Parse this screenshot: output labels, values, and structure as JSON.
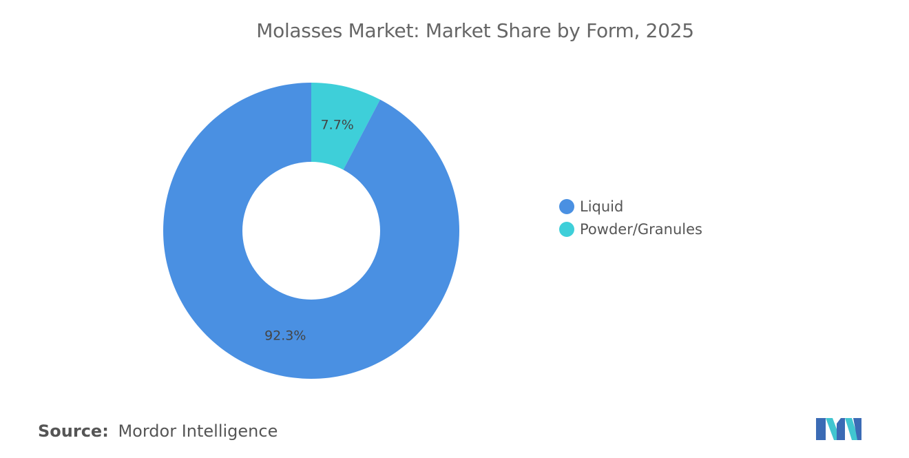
{
  "chart_data": {
    "type": "pie",
    "title": "Molasses Market: Market Share by Form, 2025",
    "donut": true,
    "categories": [
      "Liquid",
      "Powder/Granules"
    ],
    "values": [
      92.3,
      7.7
    ],
    "data_labels": [
      "92.3%",
      "7.7%"
    ],
    "colors": [
      "#4a90e2",
      "#3ecfd9"
    ],
    "legend": {
      "placement": "right",
      "entries": [
        "Liquid",
        "Powder/Granules"
      ]
    }
  },
  "footer": {
    "source_prefix": "Source:",
    "source_name": "Mordor Intelligence"
  }
}
